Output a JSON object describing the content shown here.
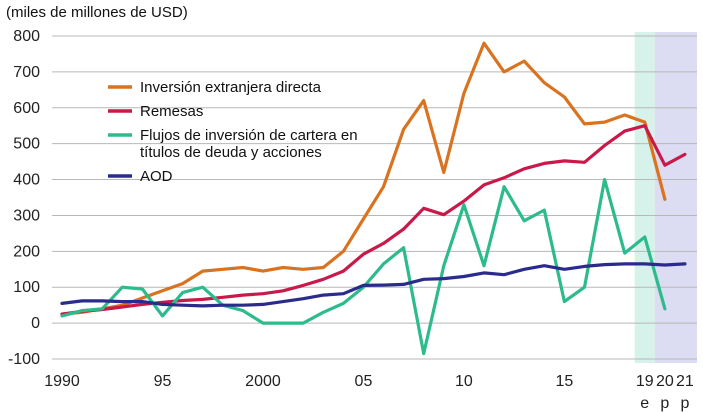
{
  "chart_data": {
    "type": "line",
    "unit_label": "(miles de millones de USD)",
    "ylim": [
      -100,
      800
    ],
    "yticks": [
      -100,
      0,
      100,
      200,
      300,
      400,
      500,
      600,
      700,
      800
    ],
    "xlim": [
      1989.5,
      2021.6
    ],
    "x": [
      1990,
      1991,
      1992,
      1993,
      1994,
      1995,
      1996,
      1997,
      1998,
      1999,
      2000,
      2001,
      2002,
      2003,
      2004,
      2005,
      2006,
      2007,
      2008,
      2009,
      2010,
      2011,
      2012,
      2013,
      2014,
      2015,
      2016,
      2017,
      2018,
      2019,
      2020,
      2021
    ],
    "xticks": [
      {
        "x": 1990,
        "label": "1990",
        "sub": ""
      },
      {
        "x": 1995,
        "label": "95",
        "sub": ""
      },
      {
        "x": 2000,
        "label": "2000",
        "sub": ""
      },
      {
        "x": 2005,
        "label": "05",
        "sub": ""
      },
      {
        "x": 2010,
        "label": "10",
        "sub": ""
      },
      {
        "x": 2015,
        "label": "15",
        "sub": ""
      },
      {
        "x": 2019,
        "label": "19",
        "sub": "e"
      },
      {
        "x": 2020,
        "label": "20",
        "sub": "p"
      },
      {
        "x": 2021,
        "label": "21",
        "sub": "p"
      }
    ],
    "shaded_regions": [
      {
        "from": 2018.5,
        "to": 2019.5,
        "color": "#d6f2ea"
      },
      {
        "from": 2019.5,
        "to": 2021.6,
        "color": "#dcdcf2"
      }
    ],
    "series": [
      {
        "name": "Inversión extranjera directa",
        "color": "#d9731f",
        "values": [
          25,
          30,
          40,
          50,
          70,
          90,
          110,
          145,
          150,
          155,
          145,
          155,
          150,
          155,
          200,
          290,
          380,
          540,
          620,
          420,
          640,
          780,
          700,
          730,
          670,
          630,
          555,
          560,
          580,
          560,
          345,
          null
        ]
      },
      {
        "name": "Remesas",
        "color": "#c8194a",
        "values": [
          25,
          33,
          38,
          45,
          52,
          58,
          63,
          66,
          72,
          78,
          82,
          90,
          105,
          122,
          145,
          192,
          222,
          262,
          320,
          302,
          340,
          385,
          405,
          430,
          445,
          452,
          448,
          495,
          535,
          550,
          440,
          470
        ]
      },
      {
        "name": "Flujos de inversión de cartera en títulos de deuda y acciones",
        "color": "#2dbb8d",
        "values": [
          20,
          35,
          40,
          100,
          95,
          20,
          85,
          100,
          50,
          35,
          0,
          0,
          0,
          30,
          55,
          100,
          165,
          210,
          -85,
          160,
          330,
          160,
          380,
          285,
          315,
          60,
          100,
          400,
          195,
          240,
          40,
          null
        ]
      },
      {
        "name": "AOD",
        "color": "#2a2b8c",
        "values": [
          55,
          62,
          62,
          60,
          60,
          52,
          50,
          48,
          50,
          50,
          52,
          60,
          68,
          78,
          82,
          105,
          106,
          108,
          122,
          124,
          130,
          140,
          135,
          150,
          160,
          150,
          158,
          163,
          165,
          165,
          162,
          165
        ]
      }
    ]
  }
}
